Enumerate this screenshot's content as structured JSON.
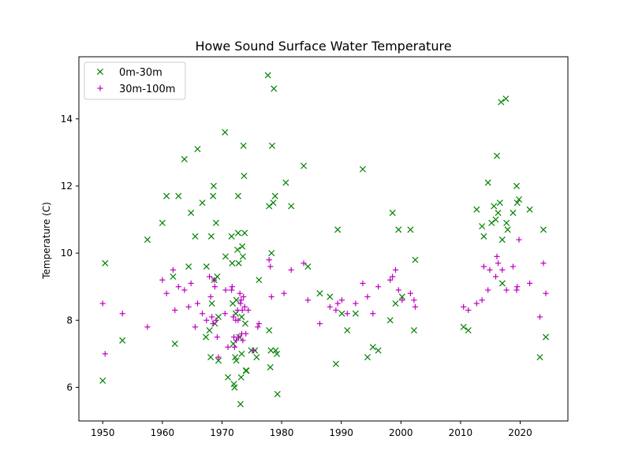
{
  "chart_data": {
    "type": "scatter",
    "title": "Howe Sound Surface Water Temperature",
    "xlabel": "",
    "ylabel": "Temperature (C)",
    "xlim": [
      1946,
      2028
    ],
    "ylim": [
      5,
      15.85
    ],
    "xticks": [
      1950,
      1960,
      1970,
      1980,
      1990,
      2000,
      2010,
      2020
    ],
    "yticks": [
      6,
      8,
      10,
      12,
      14
    ],
    "grid": false,
    "legend_position": "top-left",
    "series": [
      {
        "name": "0m-30m",
        "marker": "x",
        "color": "#008000",
        "points": [
          [
            1950.0,
            6.2
          ],
          [
            1950.4,
            9.7
          ],
          [
            1953.3,
            7.4
          ],
          [
            1957.5,
            10.4
          ],
          [
            1960.0,
            10.9
          ],
          [
            1960.7,
            11.7
          ],
          [
            1961.8,
            9.3
          ],
          [
            1962.1,
            7.3
          ],
          [
            1962.7,
            11.7
          ],
          [
            1963.7,
            12.8
          ],
          [
            1964.4,
            9.6
          ],
          [
            1964.8,
            11.2
          ],
          [
            1965.5,
            10.5
          ],
          [
            1965.9,
            13.1
          ],
          [
            1966.7,
            11.5
          ],
          [
            1967.4,
            9.6
          ],
          [
            1967.3,
            7.5
          ],
          [
            1967.9,
            7.7
          ],
          [
            1968.1,
            6.9
          ],
          [
            1968.3,
            8.5
          ],
          [
            1968.2,
            10.5
          ],
          [
            1968.5,
            11.7
          ],
          [
            1968.6,
            12.0
          ],
          [
            1968.7,
            9.2
          ],
          [
            1968.8,
            7.9
          ],
          [
            1969.0,
            10.9
          ],
          [
            1969.2,
            9.3
          ],
          [
            1969.4,
            6.8
          ],
          [
            1969.4,
            8.1
          ],
          [
            1970.5,
            13.6
          ],
          [
            1970.6,
            9.9
          ],
          [
            1971.0,
            6.3
          ],
          [
            1971.6,
            10.5
          ],
          [
            1971.7,
            9.7
          ],
          [
            1971.8,
            8.5
          ],
          [
            1971.9,
            7.3
          ],
          [
            1972.0,
            6.1
          ],
          [
            1972.1,
            6.0
          ],
          [
            1972.2,
            6.9
          ],
          [
            1972.3,
            8.2
          ],
          [
            1972.4,
            8.6
          ],
          [
            1972.4,
            6.8
          ],
          [
            1972.6,
            10.1
          ],
          [
            1972.7,
            11.7
          ],
          [
            1972.7,
            10.6
          ],
          [
            1972.8,
            9.7
          ],
          [
            1972.9,
            7.5
          ],
          [
            1973.1,
            5.5
          ],
          [
            1973.2,
            6.3
          ],
          [
            1973.3,
            7.0
          ],
          [
            1973.3,
            8.1
          ],
          [
            1973.4,
            10.2
          ],
          [
            1973.5,
            9.9
          ],
          [
            1973.6,
            13.2
          ],
          [
            1973.7,
            12.3
          ],
          [
            1973.8,
            10.6
          ],
          [
            1973.9,
            7.9
          ],
          [
            1974.0,
            6.5
          ],
          [
            1974.1,
            6.5
          ],
          [
            1974.9,
            7.1
          ],
          [
            1975.5,
            7.1
          ],
          [
            1975.8,
            6.9
          ],
          [
            1976.2,
            9.2
          ],
          [
            1977.7,
            15.3
          ],
          [
            1977.9,
            11.4
          ],
          [
            1977.9,
            7.7
          ],
          [
            1978.1,
            6.6
          ],
          [
            1978.2,
            7.1
          ],
          [
            1978.3,
            10.0
          ],
          [
            1978.4,
            13.2
          ],
          [
            1978.6,
            11.5
          ],
          [
            1978.7,
            14.9
          ],
          [
            1978.9,
            11.7
          ],
          [
            1979.0,
            7.1
          ],
          [
            1979.2,
            7.0
          ],
          [
            1979.3,
            5.8
          ],
          [
            1980.7,
            12.1
          ],
          [
            1981.6,
            11.4
          ],
          [
            1983.7,
            12.6
          ],
          [
            1984.4,
            9.6
          ],
          [
            1986.4,
            8.8
          ],
          [
            1988.1,
            8.7
          ],
          [
            1989.1,
            6.7
          ],
          [
            1989.4,
            10.7
          ],
          [
            1990.1,
            8.2
          ],
          [
            1991.0,
            7.7
          ],
          [
            1992.4,
            8.2
          ],
          [
            1993.6,
            12.5
          ],
          [
            1994.4,
            6.9
          ],
          [
            1995.3,
            7.2
          ],
          [
            1996.2,
            7.1
          ],
          [
            1998.2,
            8.0
          ],
          [
            1998.6,
            11.2
          ],
          [
            1999.1,
            8.5
          ],
          [
            1999.6,
            10.7
          ],
          [
            2000.2,
            8.7
          ],
          [
            2001.6,
            10.7
          ],
          [
            2002.2,
            7.7
          ],
          [
            2002.4,
            9.8
          ],
          [
            2010.5,
            7.8
          ],
          [
            2011.3,
            7.7
          ],
          [
            2012.7,
            11.3
          ],
          [
            2013.6,
            10.8
          ],
          [
            2013.9,
            10.5
          ],
          [
            2014.6,
            12.1
          ],
          [
            2015.2,
            10.9
          ],
          [
            2015.6,
            11.4
          ],
          [
            2015.9,
            11.0
          ],
          [
            2016.1,
            12.9
          ],
          [
            2016.3,
            11.2
          ],
          [
            2016.6,
            11.5
          ],
          [
            2016.8,
            14.5
          ],
          [
            2017.0,
            10.4
          ],
          [
            2017.0,
            9.1
          ],
          [
            2017.6,
            14.6
          ],
          [
            2017.7,
            10.9
          ],
          [
            2017.9,
            10.7
          ],
          [
            2018.8,
            11.2
          ],
          [
            2019.4,
            12.0
          ],
          [
            2019.5,
            11.5
          ],
          [
            2019.8,
            11.6
          ],
          [
            2021.6,
            11.3
          ],
          [
            2023.3,
            6.9
          ],
          [
            2023.9,
            10.7
          ],
          [
            2024.3,
            7.5
          ]
        ]
      },
      {
        "name": "30m-100m",
        "marker": "+",
        "color": "#bf00bf",
        "points": [
          [
            1950.0,
            8.5
          ],
          [
            1950.4,
            7.0
          ],
          [
            1953.3,
            8.2
          ],
          [
            1957.5,
            7.8
          ],
          [
            1960.0,
            9.2
          ],
          [
            1960.7,
            8.8
          ],
          [
            1961.8,
            9.5
          ],
          [
            1962.1,
            8.3
          ],
          [
            1962.7,
            9.0
          ],
          [
            1963.7,
            8.9
          ],
          [
            1964.4,
            8.4
          ],
          [
            1964.8,
            9.1
          ],
          [
            1965.5,
            7.8
          ],
          [
            1965.9,
            8.5
          ],
          [
            1966.7,
            8.2
          ],
          [
            1967.4,
            8.0
          ],
          [
            1967.9,
            9.3
          ],
          [
            1968.1,
            8.7
          ],
          [
            1968.3,
            8.1
          ],
          [
            1968.5,
            7.9
          ],
          [
            1968.7,
            9.2
          ],
          [
            1968.8,
            9.0
          ],
          [
            1969.0,
            8.0
          ],
          [
            1969.2,
            7.5
          ],
          [
            1969.4,
            6.9
          ],
          [
            1970.5,
            8.2
          ],
          [
            1970.6,
            8.9
          ],
          [
            1971.0,
            7.2
          ],
          [
            1971.6,
            8.9
          ],
          [
            1971.7,
            9.0
          ],
          [
            1971.9,
            8.1
          ],
          [
            1972.0,
            7.5
          ],
          [
            1972.1,
            7.2
          ],
          [
            1972.3,
            8.0
          ],
          [
            1972.4,
            7.4
          ],
          [
            1972.6,
            8.3
          ],
          [
            1972.7,
            8.0
          ],
          [
            1972.8,
            7.5
          ],
          [
            1973.0,
            8.8
          ],
          [
            1973.1,
            8.5
          ],
          [
            1973.2,
            8.6
          ],
          [
            1973.3,
            7.6
          ],
          [
            1973.4,
            8.3
          ],
          [
            1973.5,
            7.4
          ],
          [
            1973.6,
            8.7
          ],
          [
            1973.8,
            8.4
          ],
          [
            1974.0,
            7.6
          ],
          [
            1974.4,
            8.3
          ],
          [
            1975.3,
            7.1
          ],
          [
            1976.0,
            7.8
          ],
          [
            1976.2,
            7.9
          ],
          [
            1977.9,
            9.8
          ],
          [
            1978.1,
            9.6
          ],
          [
            1978.3,
            8.7
          ],
          [
            1980.4,
            8.8
          ],
          [
            1981.6,
            9.5
          ],
          [
            1983.7,
            9.7
          ],
          [
            1984.4,
            8.6
          ],
          [
            1986.4,
            7.9
          ],
          [
            1988.1,
            8.4
          ],
          [
            1989.1,
            8.3
          ],
          [
            1989.4,
            8.5
          ],
          [
            1990.1,
            8.6
          ],
          [
            1991.0,
            8.2
          ],
          [
            1992.4,
            8.5
          ],
          [
            1993.6,
            9.1
          ],
          [
            1994.4,
            8.7
          ],
          [
            1995.3,
            8.2
          ],
          [
            1996.2,
            9.0
          ],
          [
            1998.2,
            9.2
          ],
          [
            1998.6,
            9.3
          ],
          [
            1999.1,
            9.5
          ],
          [
            1999.6,
            8.9
          ],
          [
            2000.2,
            8.6
          ],
          [
            2001.6,
            8.8
          ],
          [
            2002.2,
            8.6
          ],
          [
            2002.4,
            8.4
          ],
          [
            2010.5,
            8.4
          ],
          [
            2011.3,
            8.3
          ],
          [
            2012.7,
            8.5
          ],
          [
            2013.6,
            8.6
          ],
          [
            2013.9,
            9.6
          ],
          [
            2014.6,
            8.9
          ],
          [
            2014.9,
            9.5
          ],
          [
            2015.9,
            9.3
          ],
          [
            2016.1,
            9.9
          ],
          [
            2016.3,
            9.7
          ],
          [
            2017.0,
            9.5
          ],
          [
            2017.7,
            8.9
          ],
          [
            2018.8,
            9.6
          ],
          [
            2019.4,
            8.9
          ],
          [
            2019.5,
            9.0
          ],
          [
            2019.8,
            10.4
          ],
          [
            2021.6,
            9.1
          ],
          [
            2023.3,
            8.1
          ],
          [
            2023.9,
            9.7
          ],
          [
            2024.3,
            8.8
          ]
        ]
      }
    ]
  }
}
